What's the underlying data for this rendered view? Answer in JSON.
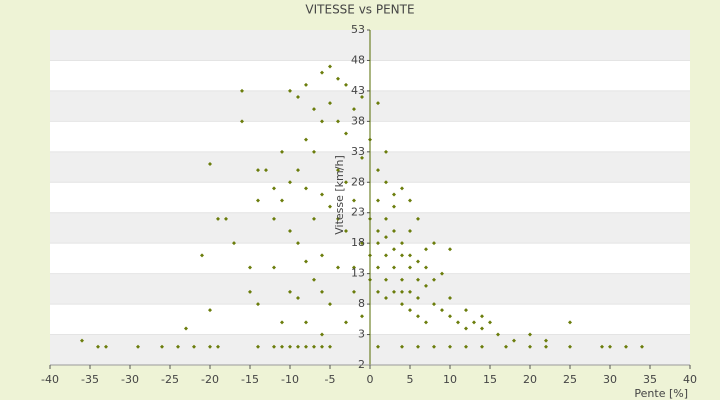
{
  "chart_data": {
    "type": "scatter",
    "title": "VITESSE vs PENTE",
    "x_label": "Pente [%]",
    "y_label": "Vitesse [km/h]",
    "color": "#6b7d0c",
    "x": [
      -16,
      -16,
      -14,
      -13,
      -20,
      -18,
      -19,
      -21,
      -17,
      -15,
      -14,
      -12,
      -11,
      -10,
      -9,
      -8,
      -7,
      -6,
      -5,
      -4,
      -3,
      -5,
      -6,
      -4,
      -3,
      -2,
      -1,
      1,
      -8,
      -7,
      -9,
      -10,
      -11,
      -12,
      -10,
      -9,
      -8,
      -7,
      -6,
      -5,
      -4,
      -3,
      -2,
      -1,
      0,
      0,
      -1,
      -2,
      -3,
      -4,
      -6,
      -5,
      -7,
      -8,
      -6,
      -4,
      -2,
      -1,
      -10,
      -12,
      -14,
      -8,
      -6,
      1,
      2,
      3,
      1,
      2,
      3,
      4,
      5,
      1,
      2,
      3,
      4,
      5,
      6,
      2,
      1,
      3,
      4,
      5,
      6,
      7,
      8,
      6,
      7,
      8,
      4,
      3,
      2,
      1,
      0,
      0,
      1,
      2,
      4,
      5,
      6,
      7,
      9,
      10,
      11,
      12,
      13,
      14,
      15,
      16,
      18,
      20,
      22,
      25,
      9,
      10,
      8,
      6,
      5,
      4,
      2,
      3,
      5,
      7,
      10,
      12,
      14,
      -3,
      -11,
      -9,
      -15,
      -20,
      -23,
      -36,
      -34,
      -33,
      -29,
      -26,
      -24,
      -22,
      -20,
      -19,
      -14,
      -12,
      -11,
      -10,
      -9,
      -8,
      -7,
      -6,
      -5,
      1,
      4,
      6,
      8,
      10,
      12,
      14,
      17,
      20,
      22,
      25,
      29,
      30,
      32,
      34
    ],
    "values": [
      43,
      38,
      30,
      30,
      31,
      22,
      22,
      16,
      18,
      14,
      25,
      27,
      33,
      43,
      42,
      44,
      40,
      46,
      47,
      45,
      44,
      41,
      38,
      38,
      36,
      40,
      42,
      41,
      35,
      33,
      30,
      28,
      25,
      22,
      20,
      18,
      15,
      12,
      10,
      8,
      30,
      28,
      25,
      32,
      35,
      22,
      18,
      14,
      20,
      22,
      26,
      24,
      22,
      27,
      16,
      14,
      10,
      6,
      10,
      14,
      8,
      5,
      3,
      30,
      28,
      26,
      25,
      22,
      20,
      18,
      16,
      18,
      16,
      14,
      12,
      14,
      12,
      12,
      14,
      10,
      10,
      10,
      9,
      11,
      8,
      15,
      14,
      12,
      16,
      17,
      19,
      20,
      16,
      12,
      10,
      9,
      8,
      7,
      6,
      5,
      7,
      6,
      5,
      4,
      5,
      4,
      5,
      3,
      2,
      3,
      2,
      5,
      13,
      17,
      18,
      22,
      25,
      27,
      33,
      24,
      20,
      17,
      9,
      7,
      6,
      5,
      5,
      9,
      10,
      7,
      4,
      2,
      1,
      1,
      1,
      1,
      1,
      1,
      1,
      1,
      1,
      1,
      1,
      1,
      1,
      1,
      1,
      1,
      1,
      1,
      1,
      1,
      1,
      1,
      1,
      1,
      1,
      1,
      1,
      1,
      1,
      1,
      1,
      1
    ],
    "xlim": [
      -40,
      40
    ],
    "xticks": [
      -40,
      -35,
      -30,
      -25,
      -20,
      -15,
      -10,
      -5,
      0,
      5,
      10,
      15,
      20,
      25,
      30,
      35,
      40
    ],
    "ylim": [
      -2,
      53
    ],
    "yticks": [
      -2,
      3,
      8,
      13,
      18,
      23,
      28,
      33,
      38,
      43,
      48,
      53
    ],
    "grid": true
  }
}
